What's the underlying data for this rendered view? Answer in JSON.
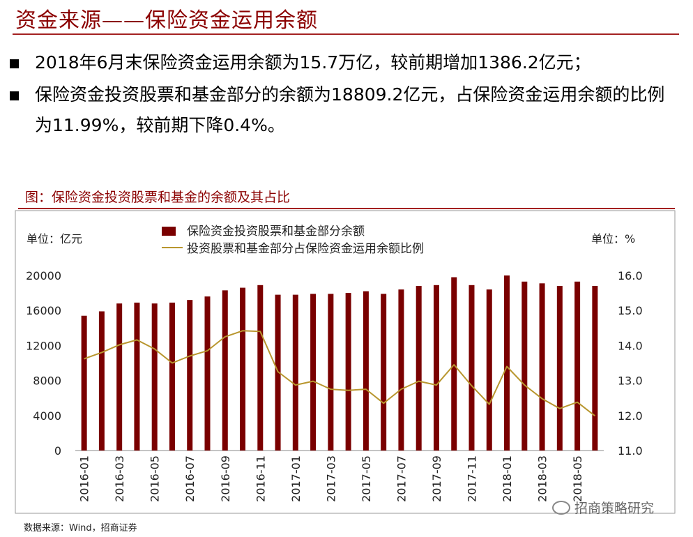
{
  "page": {
    "title": "资金来源——保险资金运用余额",
    "bullets": [
      "2018年6月末保险资金运用余额为15.7万亿，较前期增加1386.2亿元；",
      "保险资金投资股票和基金部分的余额为18809.2亿元，占保险资金运用余额的比例为11.99%，较前期下降0.4%。"
    ],
    "chart_title": "图：保险资金投资股票和基金的余额及其占比",
    "source": "数据来源：Wind，招商证券",
    "watermark": "招商策略研究"
  },
  "colors": {
    "title_red": "#8b0000",
    "bar": "#7a0000",
    "line": "#b8962e",
    "frame": "#999999",
    "text": "#222222"
  },
  "chart_data": {
    "type": "bar",
    "left_unit": "单位：亿元",
    "right_unit": "单位：%",
    "ylim": [
      0,
      20000
    ],
    "yticks": [
      "0",
      "4000",
      "8000",
      "12000",
      "16000",
      "20000"
    ],
    "y2lim": [
      11.0,
      16.0
    ],
    "y2ticks": [
      "11.0",
      "12.0",
      "13.0",
      "14.0",
      "15.0",
      "16.0"
    ],
    "xtick_labels": [
      "2016-01",
      "2016-03",
      "2016-05",
      "2016-07",
      "2016-09",
      "2016-11",
      "2017-01",
      "2017-03",
      "2017-05",
      "2017-07",
      "2017-09",
      "2017-11",
      "2018-01",
      "2018-03",
      "2018-05"
    ],
    "categories": [
      "2016-01",
      "2016-02",
      "2016-03",
      "2016-04",
      "2016-05",
      "2016-06",
      "2016-07",
      "2016-08",
      "2016-09",
      "2016-10",
      "2016-11",
      "2016-12",
      "2017-01",
      "2017-02",
      "2017-03",
      "2017-04",
      "2017-05",
      "2017-06",
      "2017-07",
      "2017-08",
      "2017-09",
      "2017-10",
      "2017-11",
      "2017-12",
      "2018-01",
      "2018-02",
      "2018-03",
      "2018-04",
      "2018-05",
      "2018-06"
    ],
    "series": [
      {
        "name": "保险资金投资股票和基金部分余额",
        "axis": "left",
        "type": "bar",
        "values": [
          15400,
          15900,
          16800,
          16900,
          16800,
          16900,
          17200,
          17600,
          18300,
          18600,
          18900,
          17800,
          17800,
          17900,
          17900,
          18000,
          18200,
          17900,
          18400,
          18800,
          18900,
          19800,
          18900,
          18400,
          20000,
          19300,
          19100,
          18800,
          19300,
          18809.2
        ]
      },
      {
        "name": "投资股票和基金部分占保险资金运用余额比例",
        "axis": "right",
        "type": "line",
        "values": [
          13.62,
          13.8,
          14.02,
          14.16,
          13.9,
          13.5,
          13.7,
          13.85,
          14.25,
          14.42,
          14.4,
          13.25,
          12.87,
          12.98,
          12.75,
          12.72,
          12.75,
          12.35,
          12.75,
          12.98,
          12.87,
          13.45,
          12.85,
          12.32,
          13.4,
          12.87,
          12.48,
          12.2,
          12.38,
          11.99
        ]
      }
    ]
  }
}
